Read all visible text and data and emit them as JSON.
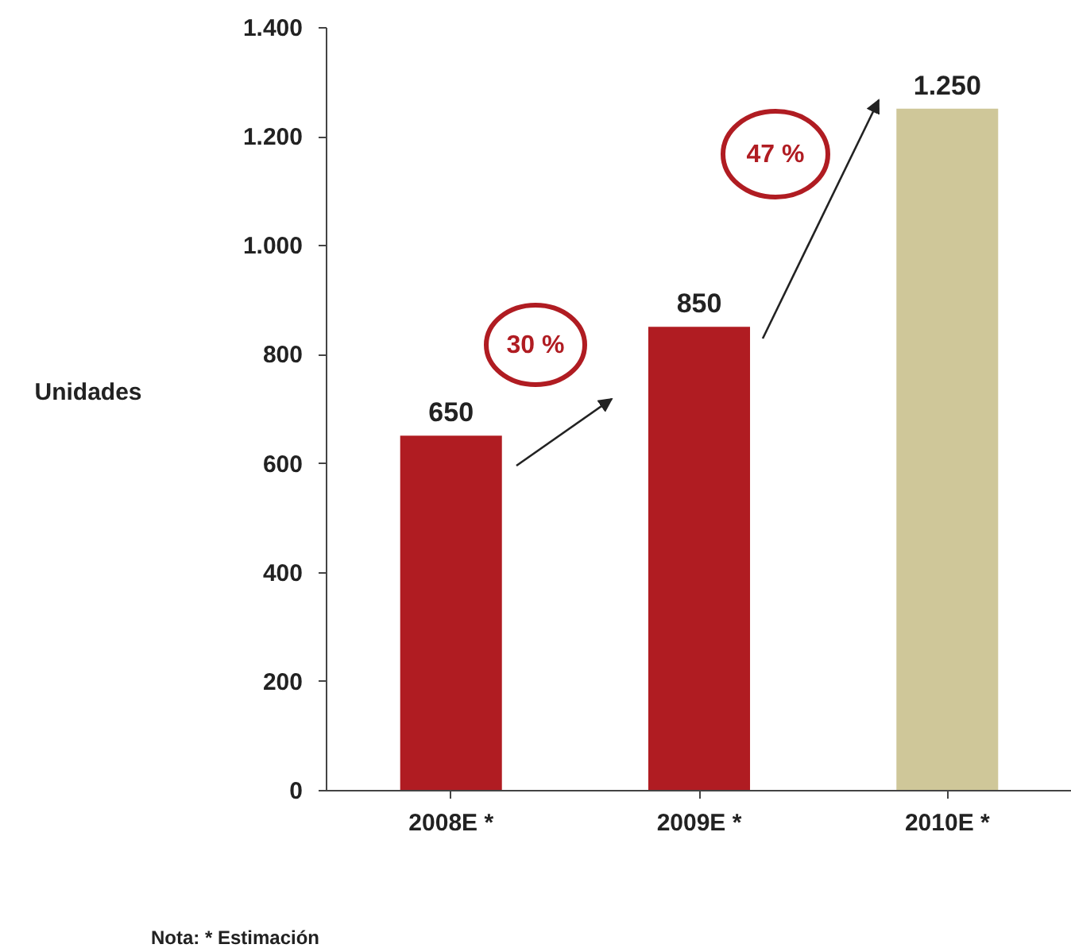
{
  "chart_data": {
    "type": "bar",
    "ylabel": "Unidades",
    "categories": [
      "2008E *",
      "2009E *",
      "2010E *"
    ],
    "values": [
      650,
      850,
      1250
    ],
    "colors": [
      "#b01c22",
      "#b01c22",
      "#cfc799"
    ],
    "value_labels": [
      "650",
      "850",
      "1.250"
    ],
    "ylim": [
      0,
      1400
    ],
    "yticks": [
      0,
      200,
      400,
      600,
      800,
      {
        "value": 1000,
        "label": "1.000"
      },
      {
        "value": 1200,
        "label": "1.200"
      },
      {
        "value": 1400,
        "label": "1.400"
      }
    ],
    "grid": false,
    "annotations": [
      "30 %",
      "47 %",
      "Nota: * Estimación"
    ]
  }
}
